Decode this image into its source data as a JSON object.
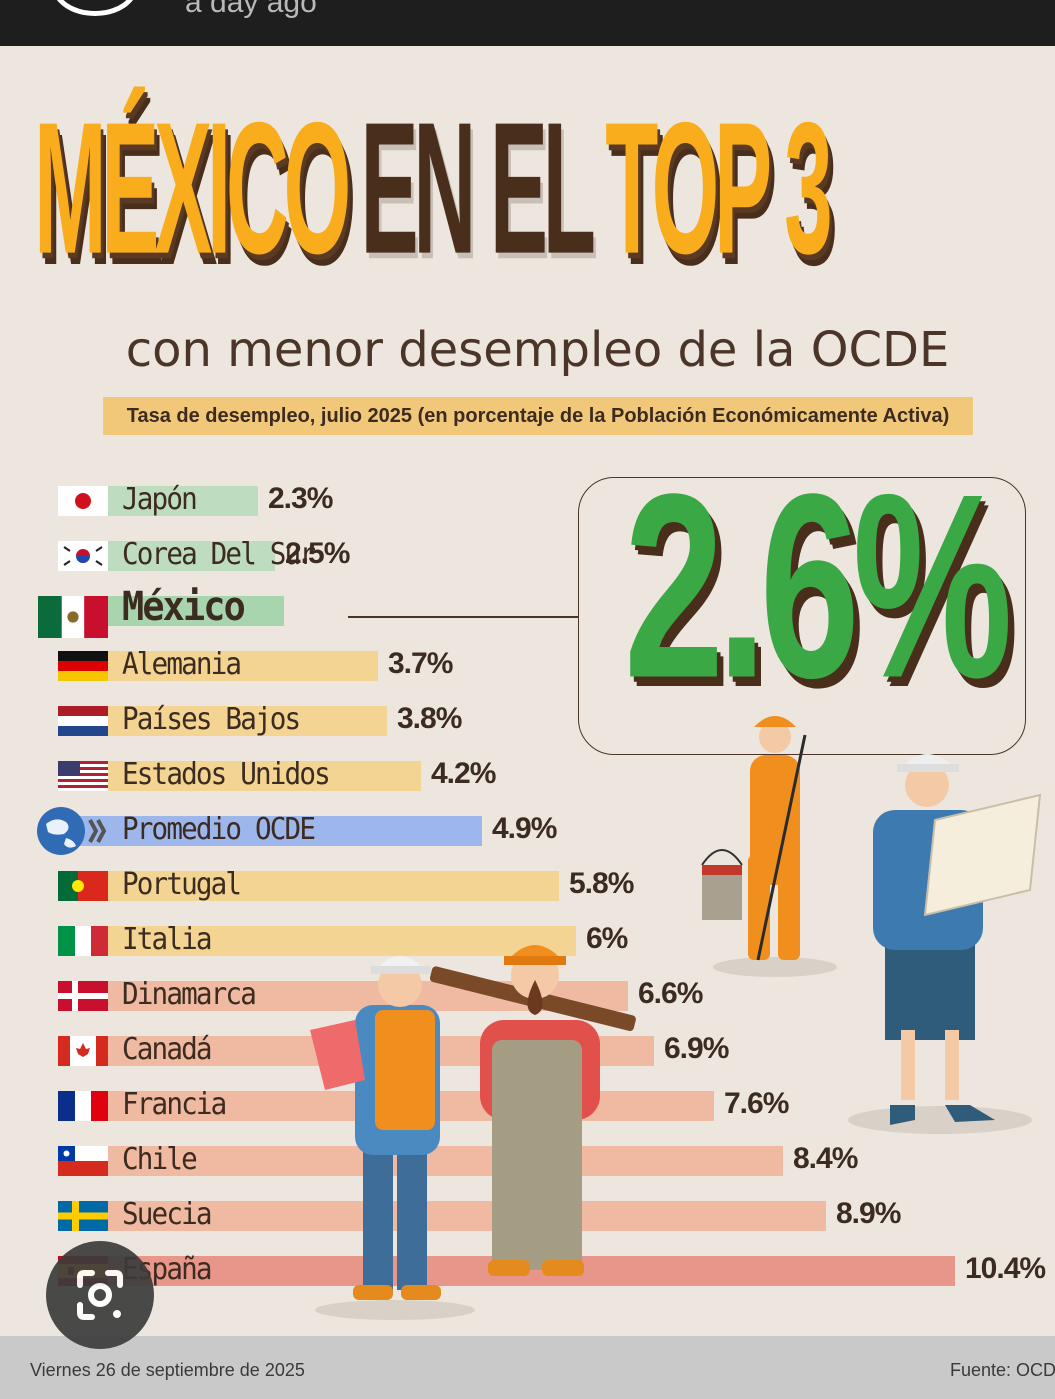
{
  "status": {
    "time_ago": "a day ago"
  },
  "headline": {
    "word1": "MÉXICO",
    "word2": "EN EL",
    "word3": "TOP 3"
  },
  "subtitle": "con menor desempleo de la OCDE",
  "tag": "Tasa de desempleo, julio 2025 (en porcentaje de la Población Económicamente Activa)",
  "callout": {
    "value": "2.6%"
  },
  "footer": {
    "date": "Viernes 26 de septiembre de 2025",
    "source": "Fuente: OCDE"
  },
  "colors": {
    "accent": "#f9ac1c",
    "brown": "#4a2e1c",
    "green": "#3aa845",
    "bar_green": "#bddcc0",
    "bar_yellow": "#f3d493",
    "bar_blue": "#9db6ec",
    "bar_salmon": "#f0b9a1",
    "bar_red": "#e9968a"
  },
  "chart_data": {
    "type": "bar",
    "orientation": "horizontal",
    "title": "MÉXICO EN EL TOP 3",
    "subtitle": "con menor desempleo de la OCDE",
    "categories": [
      "Japón",
      "Corea Del Sur",
      "México",
      "Alemania",
      "Países Bajos",
      "Estados Unidos",
      "Promedio OCDE",
      "Portugal",
      "Italia",
      "Dinamarca",
      "Canadá",
      "Francia",
      "Chile",
      "Suecia",
      "España"
    ],
    "values": [
      2.3,
      2.5,
      2.6,
      3.7,
      3.8,
      4.2,
      4.9,
      5.8,
      6,
      6.6,
      6.9,
      7.6,
      8.4,
      8.9,
      10.4
    ],
    "labels": [
      "2.3%",
      "2.5%",
      "",
      "3.7%",
      "3.8%",
      "4.2%",
      "4.9%",
      "5.8%",
      "6%",
      "6.6%",
      "6.9%",
      "7.6%",
      "8.4%",
      "8.9%",
      "10.4%"
    ],
    "flags": [
      "japan-flag-icon",
      "south-korea-flag-icon",
      "mexico-flag-icon",
      "germany-flag-icon",
      "netherlands-flag-icon",
      "usa-flag-icon",
      "oecd-globe-icon",
      "portugal-flag-icon",
      "italy-flag-icon",
      "denmark-flag-icon",
      "canada-flag-icon",
      "france-flag-icon",
      "chile-flag-icon",
      "sweden-flag-icon",
      "spain-flag-icon"
    ],
    "bar_colors": [
      "#bddcc0",
      "#bddcc0",
      "#a8d4ae",
      "#f3d493",
      "#f3d493",
      "#f3d493",
      "#9db6ec",
      "#f3d493",
      "#f3d493",
      "#f0b9a1",
      "#f0b9a1",
      "#f0b9a1",
      "#f0b9a1",
      "#f0b9a1",
      "#e9968a"
    ],
    "highlight": "México",
    "xlim": [
      0,
      10.4
    ]
  }
}
